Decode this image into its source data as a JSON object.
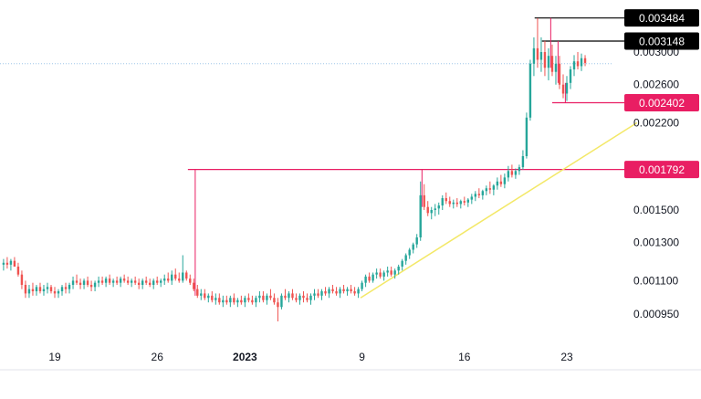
{
  "chart_data": {
    "type": "candlestick",
    "y_axis": {
      "scale": "log",
      "range": [
        0.00088,
        0.0036
      ],
      "ticks": [
        "0.003000",
        "0.002600",
        "0.002200",
        "0.001500",
        "0.001300",
        "0.001100",
        "0.000950"
      ],
      "tick_values": [
        0.003,
        0.0026,
        0.0022,
        0.0015,
        0.0013,
        0.0011,
        0.00095
      ],
      "position": "right"
    },
    "x_axis": {
      "ticks": [
        {
          "label": "19",
          "day": 19,
          "bold": false
        },
        {
          "label": "26",
          "day": 26,
          "bold": false
        },
        {
          "label": "2023",
          "day": 32,
          "bold": true
        },
        {
          "label": "9",
          "day": 40,
          "bold": false
        },
        {
          "label": "16",
          "day": 47,
          "bold": false
        },
        {
          "label": "23",
          "day": 54,
          "bold": false
        }
      ],
      "range_days": [
        15.5,
        61
      ]
    },
    "price_tags": [
      {
        "label": "0.003484",
        "value": 0.003484,
        "color": "#000000",
        "line_start_day": 51.8
      },
      {
        "label": "0.003148",
        "value": 0.003148,
        "color": "#000000",
        "line_start_day": 52.3
      },
      {
        "label": "0.002402",
        "value": 0.002402,
        "color": "#e91e63",
        "line_start_day": 53.0
      },
      {
        "label": "0.001792",
        "value": 0.001792,
        "color": "#e91e63",
        "line_start_day": 28.1
      }
    ],
    "levels": {
      "current_price": 0.00285,
      "current_line_color": "#9ec5e8"
    },
    "annotations": [
      {
        "type": "vertical",
        "day": 28.6,
        "from": 0.001792,
        "to": 0.00103,
        "color": "#e91e63"
      },
      {
        "type": "vertical",
        "day": 44.1,
        "from": 0.001792,
        "to": 0.00152,
        "color": "#e91e63"
      },
      {
        "type": "vertical",
        "day": 52.9,
        "from": 0.003484,
        "to": 0.0028,
        "color": "#e91e63"
      },
      {
        "type": "vertical",
        "day": 53.4,
        "from": 0.003148,
        "to": 0.00262,
        "color": "#e91e63"
      },
      {
        "type": "vertical",
        "day": 53.9,
        "from": 0.00262,
        "to": 0.002402,
        "color": "#e91e63"
      },
      {
        "type": "trendline",
        "from_day": 39.9,
        "from": 0.00102,
        "to_day": 58.8,
        "to": 0.0022,
        "color": "#f3e867"
      }
    ],
    "colors": {
      "up": "#26a69a",
      "down": "#ef5350"
    },
    "candles": [
      [
        15.5,
        0.00118,
        0.00121,
        0.00115,
        0.00119
      ],
      [
        15.75,
        0.00119,
        0.00122,
        0.00116,
        0.00118
      ],
      [
        16.0,
        0.00118,
        0.00121,
        0.00115,
        0.0012
      ],
      [
        16.25,
        0.0012,
        0.00122,
        0.00117,
        0.00117
      ],
      [
        16.5,
        0.00117,
        0.00119,
        0.00112,
        0.00113
      ],
      [
        16.75,
        0.00113,
        0.00115,
        0.00106,
        0.00108
      ],
      [
        17.0,
        0.00108,
        0.0011,
        0.00102,
        0.00104
      ],
      [
        17.25,
        0.00104,
        0.00108,
        0.00102,
        0.00106
      ],
      [
        17.5,
        0.00106,
        0.00109,
        0.00103,
        0.00105
      ],
      [
        17.75,
        0.00105,
        0.00108,
        0.00103,
        0.00107
      ],
      [
        18.0,
        0.00107,
        0.00109,
        0.00104,
        0.00105
      ],
      [
        18.25,
        0.00105,
        0.00108,
        0.00103,
        0.00106
      ],
      [
        18.5,
        0.00106,
        0.00109,
        0.00104,
        0.00107
      ],
      [
        18.75,
        0.00107,
        0.00108,
        0.00104,
        0.00105
      ],
      [
        19.0,
        0.00105,
        0.00107,
        0.00102,
        0.00104
      ],
      [
        19.25,
        0.00104,
        0.00106,
        0.00102,
        0.00105
      ],
      [
        19.5,
        0.00105,
        0.00108,
        0.00103,
        0.00107
      ],
      [
        19.75,
        0.00107,
        0.00109,
        0.00104,
        0.00106
      ],
      [
        20.0,
        0.00106,
        0.00109,
        0.00104,
        0.00108
      ],
      [
        20.25,
        0.00108,
        0.00112,
        0.00106,
        0.0011
      ],
      [
        20.5,
        0.0011,
        0.00113,
        0.00108,
        0.00109
      ],
      [
        20.75,
        0.00109,
        0.00111,
        0.00106,
        0.00108
      ],
      [
        21.0,
        0.00108,
        0.00111,
        0.00106,
        0.0011
      ],
      [
        21.25,
        0.0011,
        0.00112,
        0.00107,
        0.00108
      ],
      [
        21.5,
        0.00108,
        0.0011,
        0.00105,
        0.00107
      ],
      [
        21.75,
        0.00107,
        0.0011,
        0.00105,
        0.00109
      ],
      [
        22.0,
        0.00109,
        0.00112,
        0.00107,
        0.0011
      ],
      [
        22.25,
        0.0011,
        0.00112,
        0.00108,
        0.00109
      ],
      [
        22.5,
        0.00109,
        0.00112,
        0.00107,
        0.00111
      ],
      [
        22.75,
        0.00111,
        0.00113,
        0.00108,
        0.00109
      ],
      [
        23.0,
        0.00109,
        0.00111,
        0.00107,
        0.0011
      ],
      [
        23.25,
        0.0011,
        0.00112,
        0.00108,
        0.00109
      ],
      [
        23.5,
        0.00109,
        0.00112,
        0.00107,
        0.00111
      ],
      [
        23.75,
        0.00111,
        0.00113,
        0.00109,
        0.0011
      ],
      [
        24.0,
        0.0011,
        0.00112,
        0.00108,
        0.00109
      ],
      [
        24.25,
        0.00109,
        0.00111,
        0.00107,
        0.0011
      ],
      [
        24.5,
        0.0011,
        0.00112,
        0.00108,
        0.00109
      ],
      [
        24.75,
        0.00109,
        0.00111,
        0.00106,
        0.00108
      ],
      [
        25.0,
        0.00108,
        0.00111,
        0.00106,
        0.0011
      ],
      [
        25.25,
        0.0011,
        0.00112,
        0.00108,
        0.00109
      ],
      [
        25.5,
        0.00109,
        0.00111,
        0.00107,
        0.00108
      ],
      [
        25.75,
        0.00108,
        0.00111,
        0.00106,
        0.0011
      ],
      [
        26.0,
        0.0011,
        0.00112,
        0.00108,
        0.00109
      ],
      [
        26.25,
        0.00109,
        0.00111,
        0.00107,
        0.0011
      ],
      [
        26.5,
        0.0011,
        0.00113,
        0.00108,
        0.00111
      ],
      [
        26.75,
        0.00111,
        0.00114,
        0.00109,
        0.0011
      ],
      [
        27.0,
        0.0011,
        0.00115,
        0.00108,
        0.00113
      ],
      [
        27.25,
        0.00113,
        0.00116,
        0.0011,
        0.00111
      ],
      [
        27.5,
        0.00111,
        0.00114,
        0.00109,
        0.0011
      ],
      [
        27.75,
        0.0011,
        0.00123,
        0.00109,
        0.00114
      ],
      [
        28.0,
        0.00114,
        0.00115,
        0.0011,
        0.00111
      ],
      [
        28.25,
        0.00111,
        0.00113,
        0.00108,
        0.00109
      ],
      [
        28.5,
        0.00109,
        0.00111,
        0.00105,
        0.00106
      ],
      [
        28.75,
        0.00106,
        0.00108,
        0.00102,
        0.00103
      ],
      [
        29.0,
        0.00103,
        0.00106,
        0.00101,
        0.00104
      ],
      [
        29.25,
        0.00104,
        0.00106,
        0.00101,
        0.00102
      ],
      [
        29.5,
        0.00102,
        0.00104,
        0.001,
        0.00103
      ],
      [
        29.75,
        0.00103,
        0.00105,
        0.001,
        0.00101
      ],
      [
        30.0,
        0.00101,
        0.00104,
        0.00099,
        0.00102
      ],
      [
        30.25,
        0.00102,
        0.00104,
        0.00099,
        0.001
      ],
      [
        30.5,
        0.001,
        0.00103,
        0.00098,
        0.00101
      ],
      [
        30.75,
        0.00101,
        0.00103,
        0.00099,
        0.001
      ],
      [
        31.0,
        0.001,
        0.00103,
        0.00098,
        0.00102
      ],
      [
        31.25,
        0.00102,
        0.00104,
        0.00099,
        0.001
      ],
      [
        31.5,
        0.001,
        0.00102,
        0.00098,
        0.00101
      ],
      [
        31.75,
        0.00101,
        0.00103,
        0.00099,
        0.001
      ],
      [
        32.0,
        0.001,
        0.00103,
        0.00098,
        0.00102
      ],
      [
        32.25,
        0.00102,
        0.00104,
        0.001,
        0.00101
      ],
      [
        32.5,
        0.00101,
        0.00103,
        0.00099,
        0.001
      ],
      [
        32.75,
        0.001,
        0.00103,
        0.00098,
        0.00102
      ],
      [
        33.0,
        0.00102,
        0.00105,
        0.001,
        0.00103
      ],
      [
        33.25,
        0.00103,
        0.00105,
        0.001,
        0.00101
      ],
      [
        33.5,
        0.00101,
        0.00104,
        0.00099,
        0.00103
      ],
      [
        33.75,
        0.00103,
        0.00106,
        0.00101,
        0.00102
      ],
      [
        34.0,
        0.00102,
        0.00104,
        0.00099,
        0.001
      ],
      [
        34.25,
        0.001,
        0.00102,
        0.00092,
        0.00098
      ],
      [
        34.5,
        0.00098,
        0.00104,
        0.00097,
        0.00103
      ],
      [
        34.75,
        0.00103,
        0.00106,
        0.00101,
        0.00102
      ],
      [
        35.0,
        0.00102,
        0.00105,
        0.001,
        0.00104
      ],
      [
        35.25,
        0.00104,
        0.00106,
        0.00101,
        0.00102
      ],
      [
        35.5,
        0.00102,
        0.00104,
        0.001,
        0.00101
      ],
      [
        35.75,
        0.00101,
        0.00104,
        0.00099,
        0.00103
      ],
      [
        36.0,
        0.00103,
        0.00105,
        0.001,
        0.00102
      ],
      [
        36.25,
        0.00102,
        0.00104,
        0.001,
        0.00101
      ],
      [
        36.5,
        0.00101,
        0.00104,
        0.00099,
        0.00103
      ],
      [
        36.75,
        0.00103,
        0.00106,
        0.00101,
        0.00104
      ],
      [
        37.0,
        0.00104,
        0.00106,
        0.00102,
        0.00103
      ],
      [
        37.25,
        0.00103,
        0.00106,
        0.00101,
        0.00105
      ],
      [
        37.5,
        0.00105,
        0.00107,
        0.00103,
        0.00104
      ],
      [
        37.75,
        0.00104,
        0.00107,
        0.00102,
        0.00106
      ],
      [
        38.0,
        0.00106,
        0.00108,
        0.00104,
        0.00105
      ],
      [
        38.25,
        0.00105,
        0.00107,
        0.00103,
        0.00104
      ],
      [
        38.5,
        0.00104,
        0.00107,
        0.00102,
        0.00106
      ],
      [
        38.75,
        0.00106,
        0.00108,
        0.00104,
        0.00105
      ],
      [
        39.0,
        0.00105,
        0.00107,
        0.00103,
        0.00106
      ],
      [
        39.25,
        0.00106,
        0.00108,
        0.00104,
        0.00105
      ],
      [
        39.5,
        0.00105,
        0.00107,
        0.00103,
        0.00104
      ],
      [
        39.75,
        0.00104,
        0.00107,
        0.00102,
        0.00106
      ],
      [
        40.0,
        0.00106,
        0.0011,
        0.00105,
        0.00109
      ],
      [
        40.25,
        0.00109,
        0.00113,
        0.00107,
        0.00112
      ],
      [
        40.5,
        0.00112,
        0.00114,
        0.00109,
        0.0011
      ],
      [
        40.75,
        0.0011,
        0.00114,
        0.00109,
        0.00113
      ],
      [
        41.0,
        0.00113,
        0.00116,
        0.00111,
        0.00114
      ],
      [
        41.25,
        0.00114,
        0.00116,
        0.00111,
        0.00112
      ],
      [
        41.5,
        0.00112,
        0.00115,
        0.0011,
        0.00114
      ],
      [
        41.75,
        0.00114,
        0.00117,
        0.00112,
        0.00115
      ],
      [
        42.0,
        0.00115,
        0.00117,
        0.00112,
        0.00113
      ],
      [
        42.25,
        0.00113,
        0.00116,
        0.00111,
        0.00115
      ],
      [
        42.5,
        0.00115,
        0.00118,
        0.00113,
        0.00117
      ],
      [
        42.75,
        0.00117,
        0.00121,
        0.00115,
        0.0012
      ],
      [
        43.0,
        0.0012,
        0.00124,
        0.00118,
        0.00123
      ],
      [
        43.25,
        0.00123,
        0.00127,
        0.00121,
        0.00126
      ],
      [
        43.5,
        0.00126,
        0.0013,
        0.00124,
        0.00129
      ],
      [
        43.75,
        0.00129,
        0.00135,
        0.00127,
        0.00133
      ],
      [
        44.0,
        0.00133,
        0.0017,
        0.00131,
        0.0016
      ],
      [
        44.25,
        0.0016,
        0.00168,
        0.0015,
        0.00152
      ],
      [
        44.5,
        0.00152,
        0.00156,
        0.00146,
        0.00148
      ],
      [
        44.75,
        0.00148,
        0.00152,
        0.00144,
        0.0015
      ],
      [
        45.0,
        0.0015,
        0.00154,
        0.00146,
        0.00151
      ],
      [
        45.25,
        0.00151,
        0.00155,
        0.00147,
        0.00153
      ],
      [
        45.5,
        0.00153,
        0.0016,
        0.0015,
        0.00158
      ],
      [
        45.75,
        0.00158,
        0.00162,
        0.00154,
        0.00156
      ],
      [
        46.0,
        0.00156,
        0.00159,
        0.00152,
        0.00154
      ],
      [
        46.25,
        0.00154,
        0.00157,
        0.00151,
        0.00155
      ],
      [
        46.5,
        0.00155,
        0.00158,
        0.00152,
        0.00154
      ],
      [
        46.75,
        0.00154,
        0.00157,
        0.00151,
        0.00156
      ],
      [
        47.0,
        0.00156,
        0.00159,
        0.00153,
        0.00155
      ],
      [
        47.25,
        0.00155,
        0.00158,
        0.00152,
        0.00157
      ],
      [
        47.5,
        0.00157,
        0.00161,
        0.00154,
        0.00159
      ],
      [
        47.75,
        0.00159,
        0.00163,
        0.00156,
        0.00161
      ],
      [
        48.0,
        0.00161,
        0.00165,
        0.00158,
        0.0016
      ],
      [
        48.25,
        0.0016,
        0.00164,
        0.00157,
        0.00163
      ],
      [
        48.5,
        0.00163,
        0.00167,
        0.0016,
        0.00165
      ],
      [
        48.75,
        0.00165,
        0.0017,
        0.00161,
        0.00164
      ],
      [
        49.0,
        0.00164,
        0.00168,
        0.0016,
        0.00167
      ],
      [
        49.25,
        0.00167,
        0.00173,
        0.00164,
        0.0017
      ],
      [
        49.5,
        0.0017,
        0.00175,
        0.00166,
        0.00168
      ],
      [
        49.75,
        0.00168,
        0.00176,
        0.00165,
        0.00173
      ],
      [
        50.0,
        0.00173,
        0.00182,
        0.0017,
        0.00178
      ],
      [
        50.25,
        0.00178,
        0.00183,
        0.00173,
        0.00175
      ],
      [
        50.5,
        0.00175,
        0.0018,
        0.00172,
        0.00178
      ],
      [
        50.75,
        0.00178,
        0.00183,
        0.00175,
        0.00181
      ],
      [
        51.0,
        0.00181,
        0.00195,
        0.00179,
        0.0019
      ],
      [
        51.25,
        0.0019,
        0.0023,
        0.00188,
        0.00225
      ],
      [
        51.5,
        0.00225,
        0.0029,
        0.00222,
        0.00285
      ],
      [
        51.75,
        0.00285,
        0.0032,
        0.0027,
        0.00305
      ],
      [
        52.0,
        0.00305,
        0.00348,
        0.0028,
        0.0029
      ],
      [
        52.25,
        0.0029,
        0.0032,
        0.00275,
        0.003
      ],
      [
        52.5,
        0.003,
        0.00315,
        0.0027,
        0.0028
      ],
      [
        52.75,
        0.0028,
        0.00305,
        0.00265,
        0.00295
      ],
      [
        53.0,
        0.00295,
        0.0031,
        0.0027,
        0.00275
      ],
      [
        53.25,
        0.00275,
        0.00295,
        0.0026,
        0.00285
      ],
      [
        53.5,
        0.00285,
        0.00295,
        0.00255,
        0.0026
      ],
      [
        53.75,
        0.0026,
        0.00272,
        0.00245,
        0.0025
      ],
      [
        54.0,
        0.0025,
        0.0027,
        0.00242,
        0.00262
      ],
      [
        54.25,
        0.00262,
        0.00282,
        0.00255,
        0.00278
      ],
      [
        54.5,
        0.00278,
        0.00296,
        0.0027,
        0.00288
      ],
      [
        54.75,
        0.00288,
        0.003,
        0.00278,
        0.00282
      ],
      [
        55.0,
        0.00282,
        0.00298,
        0.00276,
        0.00292
      ],
      [
        55.25,
        0.00292,
        0.00296,
        0.00282,
        0.00286
      ]
    ]
  }
}
